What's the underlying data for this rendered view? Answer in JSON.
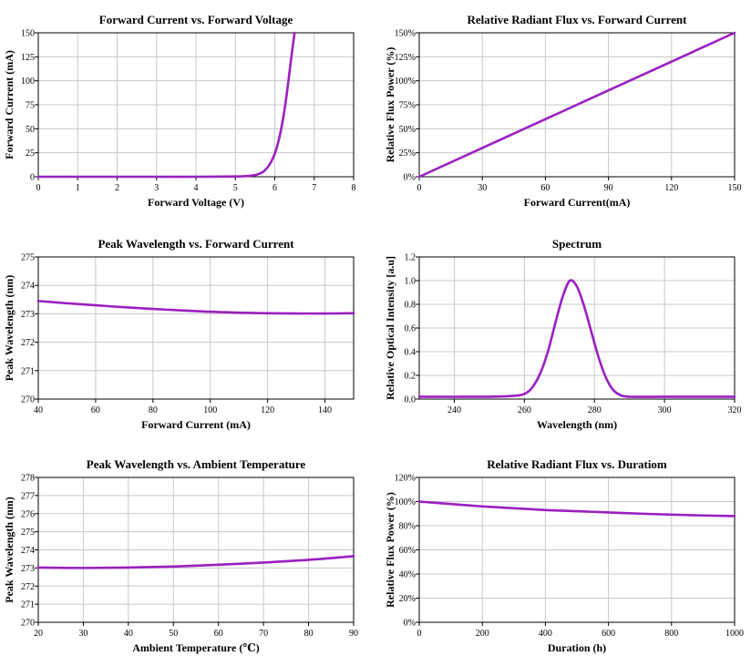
{
  "style": {
    "line_color": "#9b1fc0",
    "grid_color": "#c8c8c8"
  },
  "chart_data": [
    {
      "type": "line",
      "title": "Forward Current vs. Forward Voltage",
      "xlabel": "Forward Voltage (V)",
      "ylabel": "Forward Current (mA)",
      "xlim": [
        0,
        8
      ],
      "ylim": [
        0,
        150
      ],
      "xticks": [
        0,
        1,
        2,
        3,
        4,
        5,
        6,
        7,
        8
      ],
      "xtick_labels": [
        "0",
        "1",
        "2",
        "3",
        "4",
        "5",
        "6",
        "7",
        "8"
      ],
      "yticks": [
        0,
        25,
        50,
        75,
        100,
        125,
        150
      ],
      "ytick_labels": [
        "0",
        "25",
        "50",
        "75",
        "100",
        "125",
        "150"
      ],
      "grid": true,
      "series": [
        {
          "x": [
            0,
            1,
            2,
            3,
            4,
            5,
            5.3,
            5.5,
            5.6,
            5.7,
            5.8,
            5.9,
            6.0,
            6.1,
            6.2,
            6.3,
            6.4,
            6.5
          ],
          "y": [
            0,
            0,
            0,
            0,
            0,
            0.3,
            0.8,
            1.8,
            3,
            5,
            9,
            15,
            24,
            38,
            58,
            85,
            118,
            150
          ]
        }
      ]
    },
    {
      "type": "line",
      "title": "Relative Radiant Flux vs. Forward Current",
      "xlabel": "Forward Current(mA)",
      "ylabel": "Relative Flux Power (%)",
      "xlim": [
        0,
        150
      ],
      "ylim": [
        0,
        150
      ],
      "xticks": [
        0,
        30,
        60,
        90,
        120,
        150
      ],
      "xtick_labels": [
        "0",
        "30",
        "60",
        "90",
        "120",
        "150"
      ],
      "yticks": [
        0,
        25,
        50,
        75,
        100,
        125,
        150
      ],
      "ytick_labels": [
        "0%",
        "25%",
        "50%",
        "75%",
        "100%",
        "125%",
        "150%"
      ],
      "grid": true,
      "series": [
        {
          "x": [
            0,
            150
          ],
          "y": [
            0,
            150
          ]
        }
      ]
    },
    {
      "type": "line",
      "title": "Peak Wavelength vs. Forward Current",
      "xlabel": "Forward Current (mA)",
      "ylabel": "Peak Wavelength (nm)",
      "xlim": [
        40,
        150
      ],
      "ylim": [
        270,
        275
      ],
      "xticks": [
        40,
        60,
        80,
        100,
        120,
        140
      ],
      "xtick_labels": [
        "40",
        "60",
        "80",
        "100",
        "120",
        "140"
      ],
      "yticks": [
        270,
        271,
        272,
        273,
        274,
        275
      ],
      "ytick_labels": [
        "270",
        "271",
        "272",
        "273",
        "274",
        "275"
      ],
      "grid": true,
      "series": [
        {
          "x": [
            40,
            50,
            60,
            70,
            80,
            90,
            100,
            110,
            120,
            130,
            140,
            150
          ],
          "y": [
            273.45,
            273.37,
            273.3,
            273.23,
            273.17,
            273.12,
            273.07,
            273.04,
            273.02,
            273.01,
            273.01,
            273.02
          ]
        }
      ]
    },
    {
      "type": "line",
      "title": "Spectrum",
      "xlabel": "Wavelength (nm)",
      "ylabel": "Relative Optical Intensity [a.u]",
      "xlim": [
        230,
        320
      ],
      "ylim": [
        0,
        1.2
      ],
      "xticks": [
        240,
        260,
        280,
        300,
        320
      ],
      "xtick_labels": [
        "240",
        "260",
        "280",
        "300",
        "320"
      ],
      "yticks": [
        0,
        0.2,
        0.4,
        0.6,
        0.8,
        1.0,
        1.2
      ],
      "ytick_labels": [
        "0.0",
        "0.2",
        "0.4",
        "0.6",
        "0.8",
        "1.0",
        "1.2"
      ],
      "grid": true,
      "series": [
        {
          "x": [
            230,
            250,
            258,
            261,
            263,
            265,
            267,
            269,
            271,
            273,
            275,
            277,
            279,
            281,
            283,
            285,
            287,
            290,
            300,
            320
          ],
          "y": [
            0.02,
            0.02,
            0.03,
            0.06,
            0.13,
            0.25,
            0.43,
            0.66,
            0.87,
            1.0,
            0.95,
            0.79,
            0.58,
            0.37,
            0.2,
            0.09,
            0.04,
            0.02,
            0.02,
            0.02
          ]
        }
      ]
    },
    {
      "type": "line",
      "title": "Peak Wavelength vs. Ambient Temperature",
      "xlabel": "Ambient Temperature (℃)",
      "ylabel": "Peak Wavelength (nm)",
      "xlim": [
        20,
        90
      ],
      "ylim": [
        270,
        278
      ],
      "xticks": [
        20,
        30,
        40,
        50,
        60,
        70,
        80,
        90
      ],
      "xtick_labels": [
        "20",
        "30",
        "40",
        "50",
        "60",
        "70",
        "80",
        "90"
      ],
      "yticks": [
        270,
        271,
        272,
        273,
        274,
        275,
        276,
        277,
        278
      ],
      "ytick_labels": [
        "270",
        "271",
        "272",
        "273",
        "274",
        "275",
        "276",
        "277",
        "278"
      ],
      "grid": true,
      "series": [
        {
          "x": [
            20,
            30,
            40,
            50,
            60,
            70,
            80,
            90
          ],
          "y": [
            273.02,
            273.0,
            273.02,
            273.08,
            273.18,
            273.3,
            273.45,
            273.65
          ]
        }
      ]
    },
    {
      "type": "line",
      "title": "Relative Radiant Flux vs. Duratiom",
      "xlabel": "Duration (h)",
      "ylabel": "Relative Flux Power (%)",
      "xlim": [
        0,
        1000
      ],
      "ylim": [
        0,
        120
      ],
      "xticks": [
        0,
        200,
        400,
        600,
        800,
        1000
      ],
      "xtick_labels": [
        "0",
        "200",
        "400",
        "600",
        "800",
        "1000"
      ],
      "yticks": [
        0,
        20,
        40,
        60,
        80,
        100,
        120
      ],
      "ytick_labels": [
        "0%",
        "20%",
        "40%",
        "60%",
        "80%",
        "100%",
        "120%"
      ],
      "grid": true,
      "series": [
        {
          "x": [
            0,
            100,
            200,
            300,
            400,
            500,
            600,
            700,
            800,
            900,
            1000
          ],
          "y": [
            100,
            98,
            96,
            94.5,
            93,
            92,
            91,
            90,
            89.2,
            88.5,
            88
          ]
        }
      ]
    }
  ]
}
